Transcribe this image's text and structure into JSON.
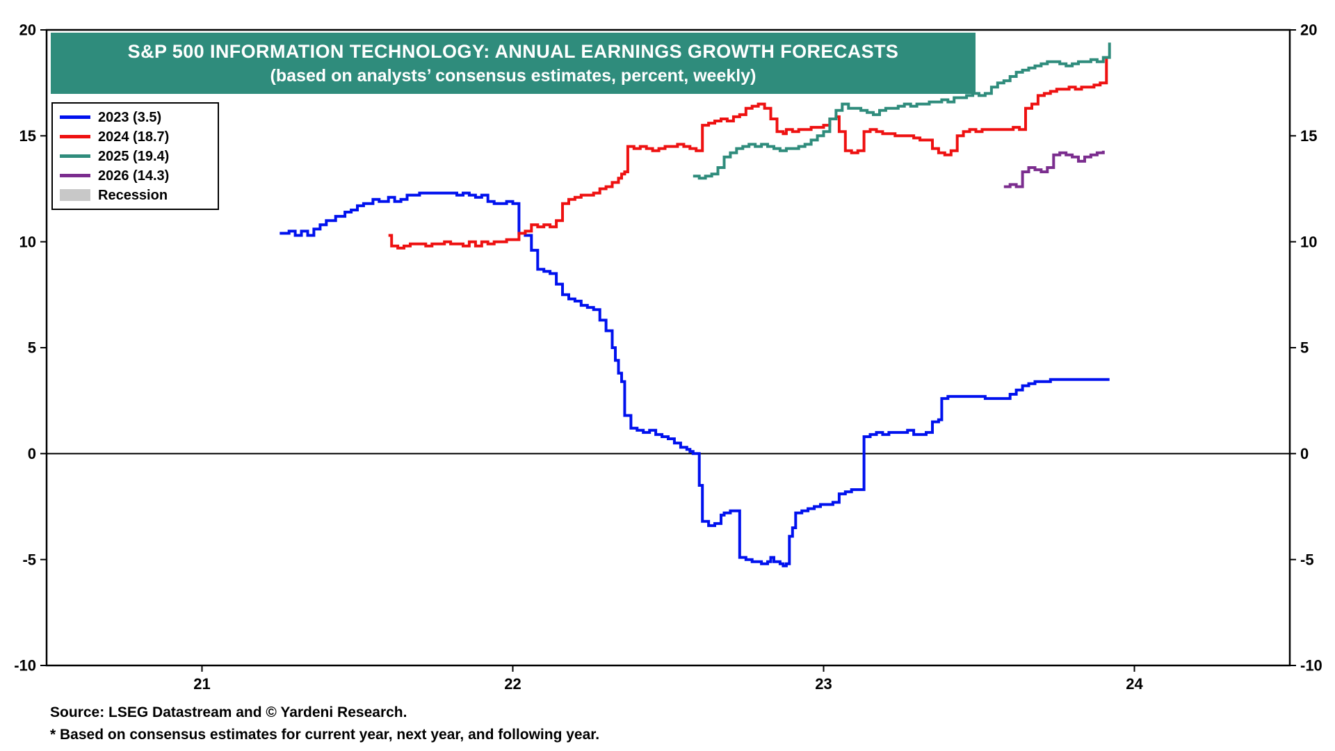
{
  "title": {
    "line1": "S&P 500 INFORMATION TECHNOLOGY: ANNUAL EARNINGS GROWTH FORECASTS",
    "line2": "(based on analysts’ consensus estimates, percent, weekly)"
  },
  "colors": {
    "banner": "#2F8C7C",
    "series_2023": "#0011EE",
    "series_2024": "#EE1111",
    "series_2025": "#2F8C7C",
    "series_2026": "#7B2D8E",
    "recession": "#C8C8C8",
    "axis": "#000000"
  },
  "legend": [
    {
      "label": "2023 (3.5)",
      "color": "#0011EE",
      "swatch": "line"
    },
    {
      "label": "2024 (18.7)",
      "color": "#EE1111",
      "swatch": "line"
    },
    {
      "label": "2025 (19.4)",
      "color": "#2F8C7C",
      "swatch": "line"
    },
    {
      "label": "2026 (14.3)",
      "color": "#7B2D8E",
      "swatch": "line"
    },
    {
      "label": "Recession",
      "color": "#C8C8C8",
      "swatch": "rect"
    }
  ],
  "footer": {
    "source": "Source: LSEG Datastream and © Yardeni Research.",
    "footnote": "* Based on consensus estimates for current year, next year, and following year."
  },
  "chart_data": {
    "type": "line",
    "title": "S&P 500 INFORMATION TECHNOLOGY: ANNUAL EARNINGS GROWTH FORECASTS",
    "subtitle": "(based on analysts’ consensus estimates, percent, weekly)",
    "xlabel": "",
    "ylabel": "percent",
    "xlim": [
      20.5,
      24.5
    ],
    "ylim": [
      -10,
      20
    ],
    "xticks": [
      21,
      22,
      23,
      24
    ],
    "xtick_labels": [
      "21",
      "22",
      "23",
      "24"
    ],
    "yticks": [
      -10,
      -5,
      0,
      5,
      10,
      15,
      20
    ],
    "grid": false,
    "legend_position": "top-left",
    "interpolation": "step-after",
    "series": [
      {
        "name": "2023 (3.5)",
        "color": "#0011EE",
        "final_value": 3.5,
        "x": [
          21.25,
          21.28,
          21.3,
          21.32,
          21.34,
          21.36,
          21.38,
          21.4,
          21.43,
          21.46,
          21.48,
          21.5,
          21.52,
          21.55,
          21.57,
          21.6,
          21.62,
          21.64,
          21.66,
          21.7,
          21.74,
          21.78,
          21.82,
          21.84,
          21.86,
          21.88,
          21.9,
          21.92,
          21.94,
          21.96,
          21.98,
          22.0,
          22.02,
          22.04,
          22.06,
          22.08,
          22.1,
          22.12,
          22.14,
          22.16,
          22.18,
          22.2,
          22.22,
          22.24,
          22.26,
          22.28,
          22.3,
          22.32,
          22.33,
          22.34,
          22.35,
          22.36,
          22.38,
          22.4,
          22.42,
          22.44,
          22.46,
          22.48,
          22.5,
          22.52,
          22.54,
          22.56,
          22.57,
          22.58,
          22.6,
          22.61,
          22.63,
          22.65,
          22.67,
          22.68,
          22.7,
          22.72,
          22.73,
          22.75,
          22.77,
          22.79,
          22.8,
          22.82,
          22.83,
          22.84,
          22.86,
          22.87,
          22.88,
          22.89,
          22.9,
          22.91,
          22.93,
          22.95,
          22.97,
          22.99,
          23.01,
          23.03,
          23.05,
          23.07,
          23.09,
          23.11,
          23.13,
          23.15,
          23.17,
          23.19,
          23.21,
          23.23,
          23.25,
          23.27,
          23.29,
          23.31,
          23.33,
          23.35,
          23.37,
          23.38,
          23.4,
          23.43,
          23.46,
          23.49,
          23.52,
          23.55,
          23.58,
          23.6,
          23.62,
          23.64,
          23.66,
          23.68,
          23.7,
          23.73,
          23.76,
          23.8,
          23.84,
          23.88,
          23.92
        ],
        "y": [
          10.4,
          10.5,
          10.3,
          10.5,
          10.3,
          10.6,
          10.8,
          11.0,
          11.2,
          11.4,
          11.5,
          11.7,
          11.8,
          12.0,
          11.9,
          12.1,
          11.9,
          12.0,
          12.2,
          12.3,
          12.3,
          12.3,
          12.2,
          12.3,
          12.2,
          12.1,
          12.2,
          11.9,
          11.8,
          11.8,
          11.9,
          11.8,
          10.4,
          10.3,
          9.6,
          8.7,
          8.6,
          8.5,
          8.0,
          7.5,
          7.3,
          7.2,
          7.0,
          6.9,
          6.8,
          6.3,
          5.8,
          5.0,
          4.4,
          3.8,
          3.4,
          1.8,
          1.2,
          1.1,
          1.0,
          1.1,
          0.9,
          0.8,
          0.7,
          0.5,
          0.3,
          0.2,
          0.1,
          0.0,
          -1.5,
          -3.2,
          -3.4,
          -3.3,
          -2.9,
          -2.8,
          -2.7,
          -2.7,
          -4.9,
          -5.0,
          -5.1,
          -5.1,
          -5.2,
          -5.1,
          -4.9,
          -5.1,
          -5.2,
          -5.3,
          -5.2,
          -3.9,
          -3.5,
          -2.8,
          -2.7,
          -2.6,
          -2.5,
          -2.4,
          -2.4,
          -2.3,
          -1.9,
          -1.8,
          -1.7,
          -1.7,
          0.8,
          0.9,
          1.0,
          0.9,
          1.0,
          1.0,
          1.0,
          1.1,
          0.9,
          0.9,
          1.0,
          1.5,
          1.6,
          2.6,
          2.7,
          2.7,
          2.7,
          2.7,
          2.6,
          2.6,
          2.6,
          2.8,
          3.0,
          3.2,
          3.3,
          3.4,
          3.4,
          3.5,
          3.5,
          3.5,
          3.5,
          3.5,
          3.5
        ]
      },
      {
        "name": "2024 (18.7)",
        "color": "#EE1111",
        "final_value": 18.7,
        "x": [
          21.6,
          21.61,
          21.63,
          21.65,
          21.67,
          21.7,
          21.72,
          21.74,
          21.76,
          21.78,
          21.8,
          21.82,
          21.84,
          21.86,
          21.88,
          21.9,
          21.92,
          21.94,
          21.96,
          21.98,
          22.0,
          22.02,
          22.04,
          22.06,
          22.08,
          22.1,
          22.12,
          22.14,
          22.16,
          22.18,
          22.2,
          22.22,
          22.24,
          22.26,
          22.28,
          22.3,
          22.32,
          22.34,
          22.35,
          22.36,
          22.37,
          22.39,
          22.41,
          22.43,
          22.45,
          22.47,
          22.49,
          22.51,
          22.53,
          22.55,
          22.57,
          22.59,
          22.61,
          22.63,
          22.65,
          22.67,
          22.69,
          22.71,
          22.73,
          22.75,
          22.77,
          22.79,
          22.81,
          22.83,
          22.85,
          22.87,
          22.88,
          22.9,
          22.92,
          22.94,
          22.96,
          22.98,
          23.0,
          23.02,
          23.04,
          23.05,
          23.07,
          23.09,
          23.11,
          23.13,
          23.15,
          23.17,
          23.19,
          23.21,
          23.23,
          23.25,
          23.27,
          23.29,
          23.31,
          23.33,
          23.35,
          23.37,
          23.39,
          23.41,
          23.43,
          23.45,
          23.47,
          23.49,
          23.51,
          23.53,
          23.55,
          23.57,
          23.59,
          23.61,
          23.63,
          23.65,
          23.67,
          23.69,
          23.71,
          23.73,
          23.75,
          23.77,
          23.79,
          23.81,
          23.83,
          23.85,
          23.87,
          23.89,
          23.91
        ],
        "y": [
          10.3,
          9.8,
          9.7,
          9.8,
          9.9,
          9.9,
          9.8,
          9.9,
          9.9,
          10.0,
          9.9,
          9.9,
          9.8,
          10.0,
          9.8,
          10.0,
          9.9,
          10.0,
          10.0,
          10.1,
          10.1,
          10.4,
          10.5,
          10.8,
          10.7,
          10.8,
          10.7,
          11.0,
          11.8,
          12.0,
          12.1,
          12.2,
          12.2,
          12.3,
          12.5,
          12.6,
          12.8,
          13.0,
          13.2,
          13.3,
          14.5,
          14.4,
          14.5,
          14.4,
          14.3,
          14.4,
          14.5,
          14.5,
          14.6,
          14.5,
          14.4,
          14.3,
          15.5,
          15.6,
          15.7,
          15.8,
          15.7,
          15.9,
          16.0,
          16.3,
          16.4,
          16.5,
          16.3,
          15.8,
          15.2,
          15.1,
          15.3,
          15.2,
          15.3,
          15.3,
          15.4,
          15.4,
          15.5,
          15.8,
          15.9,
          15.2,
          14.3,
          14.2,
          14.3,
          15.2,
          15.3,
          15.2,
          15.1,
          15.1,
          15.0,
          15.0,
          15.0,
          14.9,
          14.8,
          14.8,
          14.4,
          14.2,
          14.1,
          14.3,
          15.0,
          15.2,
          15.3,
          15.2,
          15.3,
          15.3,
          15.3,
          15.3,
          15.3,
          15.4,
          15.3,
          16.3,
          16.5,
          16.9,
          17.0,
          17.1,
          17.2,
          17.2,
          17.3,
          17.2,
          17.3,
          17.3,
          17.4,
          17.5,
          18.7
        ]
      },
      {
        "name": "2025 (19.4)",
        "color": "#2F8C7C",
        "final_value": 19.4,
        "x": [
          22.58,
          22.6,
          22.62,
          22.64,
          22.66,
          22.68,
          22.7,
          22.72,
          22.74,
          22.76,
          22.78,
          22.8,
          22.82,
          22.84,
          22.86,
          22.88,
          22.9,
          22.92,
          22.94,
          22.96,
          22.98,
          23.0,
          23.02,
          23.04,
          23.06,
          23.08,
          23.1,
          23.12,
          23.14,
          23.16,
          23.18,
          23.2,
          23.22,
          23.24,
          23.26,
          23.28,
          23.3,
          23.32,
          23.34,
          23.36,
          23.38,
          23.4,
          23.42,
          23.44,
          23.46,
          23.48,
          23.5,
          23.52,
          23.54,
          23.56,
          23.58,
          23.6,
          23.62,
          23.64,
          23.66,
          23.68,
          23.7,
          23.72,
          23.74,
          23.76,
          23.78,
          23.8,
          23.82,
          23.84,
          23.86,
          23.88,
          23.9,
          23.92
        ],
        "y": [
          13.1,
          13.0,
          13.1,
          13.2,
          13.5,
          14.0,
          14.2,
          14.4,
          14.5,
          14.6,
          14.5,
          14.6,
          14.5,
          14.4,
          14.3,
          14.4,
          14.4,
          14.5,
          14.6,
          14.8,
          15.0,
          15.2,
          15.8,
          16.2,
          16.5,
          16.3,
          16.3,
          16.2,
          16.1,
          16.0,
          16.2,
          16.3,
          16.3,
          16.4,
          16.5,
          16.4,
          16.5,
          16.5,
          16.6,
          16.6,
          16.7,
          16.6,
          16.8,
          16.8,
          16.9,
          17.0,
          16.9,
          17.0,
          17.3,
          17.5,
          17.6,
          17.8,
          18.0,
          18.1,
          18.2,
          18.3,
          18.4,
          18.5,
          18.5,
          18.4,
          18.3,
          18.4,
          18.5,
          18.5,
          18.6,
          18.5,
          18.7,
          19.4
        ]
      },
      {
        "name": "2026 (14.3)",
        "color": "#7B2D8E",
        "final_value": 14.3,
        "x": [
          23.58,
          23.6,
          23.62,
          23.64,
          23.66,
          23.68,
          23.7,
          23.72,
          23.74,
          23.76,
          23.78,
          23.8,
          23.82,
          23.84,
          23.86,
          23.88,
          23.9
        ],
        "y": [
          12.6,
          12.7,
          12.6,
          13.3,
          13.5,
          13.4,
          13.3,
          13.5,
          14.1,
          14.2,
          14.1,
          14.0,
          13.8,
          14.0,
          14.1,
          14.2,
          14.3
        ]
      }
    ]
  }
}
